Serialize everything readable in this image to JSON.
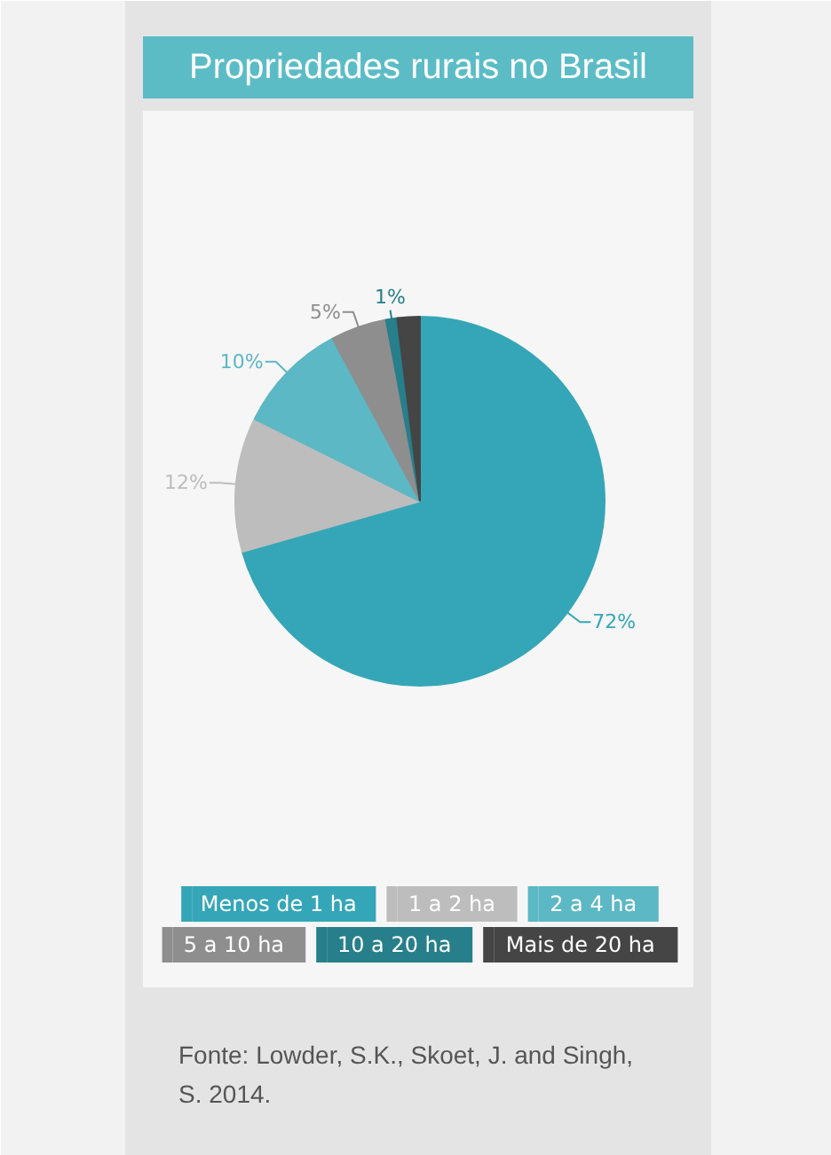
{
  "chart_data": {
    "type": "pie",
    "title": "Propriedades rurais no Brasil",
    "categories": [
      "Menos de 1 ha",
      "1 a 2 ha",
      "2 a 4 ha",
      "5 a 10 ha",
      "10 a 20 ha",
      "Mais de 20 ha"
    ],
    "values": [
      72,
      12,
      10,
      5,
      1,
      2
    ],
    "value_labels": [
      "72%",
      "12%",
      "10%",
      "5%",
      "1%",
      null
    ],
    "colors": [
      "#35a6b7",
      "#bdbdbd",
      "#5cb8c4",
      "#8e8e8e",
      "#277f8b",
      "#454545"
    ],
    "legend": "bottom",
    "annotations": [
      "Fonte: Lowder, S.K., Skoet, J. and Singh, S. 2014."
    ]
  }
}
